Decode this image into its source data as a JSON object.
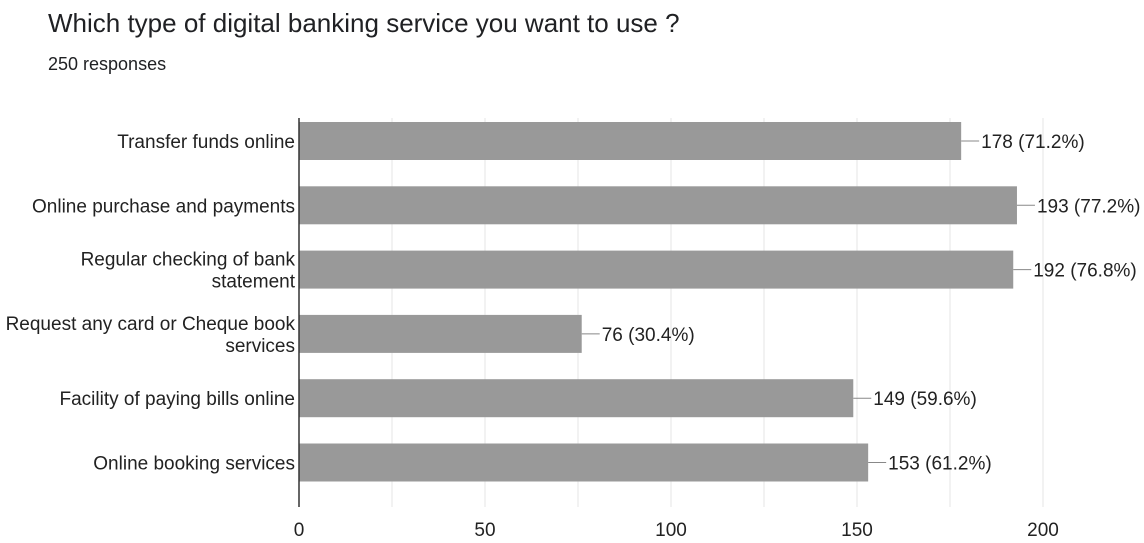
{
  "header": {
    "title": "Which type of digital banking service you want to use ?",
    "subtitle": "250 responses"
  },
  "colors": {
    "bar": "#999999",
    "grid": "#e6e6e6",
    "axis": "#333333",
    "text": "#222222"
  },
  "chart_data": {
    "type": "bar",
    "orientation": "horizontal",
    "title": "Which type of digital banking service you want to use ?",
    "subtitle": "250 responses",
    "categories": [
      [
        "Transfer funds online"
      ],
      [
        "Online purchase and payments"
      ],
      [
        "Regular checking of bank",
        "statement"
      ],
      [
        "Request any card or Cheque book",
        "services"
      ],
      [
        "Facility of paying bills online"
      ],
      [
        "Online booking services"
      ]
    ],
    "values": [
      178,
      193,
      192,
      76,
      149,
      153
    ],
    "data_labels": [
      "178 (71.2%)",
      "193 (77.2%)",
      "192 (76.8%)",
      "76 (30.4%)",
      "149 (59.6%)",
      "153 (61.2%)"
    ],
    "xlim": [
      0,
      200
    ],
    "xticks": [
      0,
      50,
      100,
      150,
      200
    ],
    "grid": true,
    "legend": "none"
  }
}
